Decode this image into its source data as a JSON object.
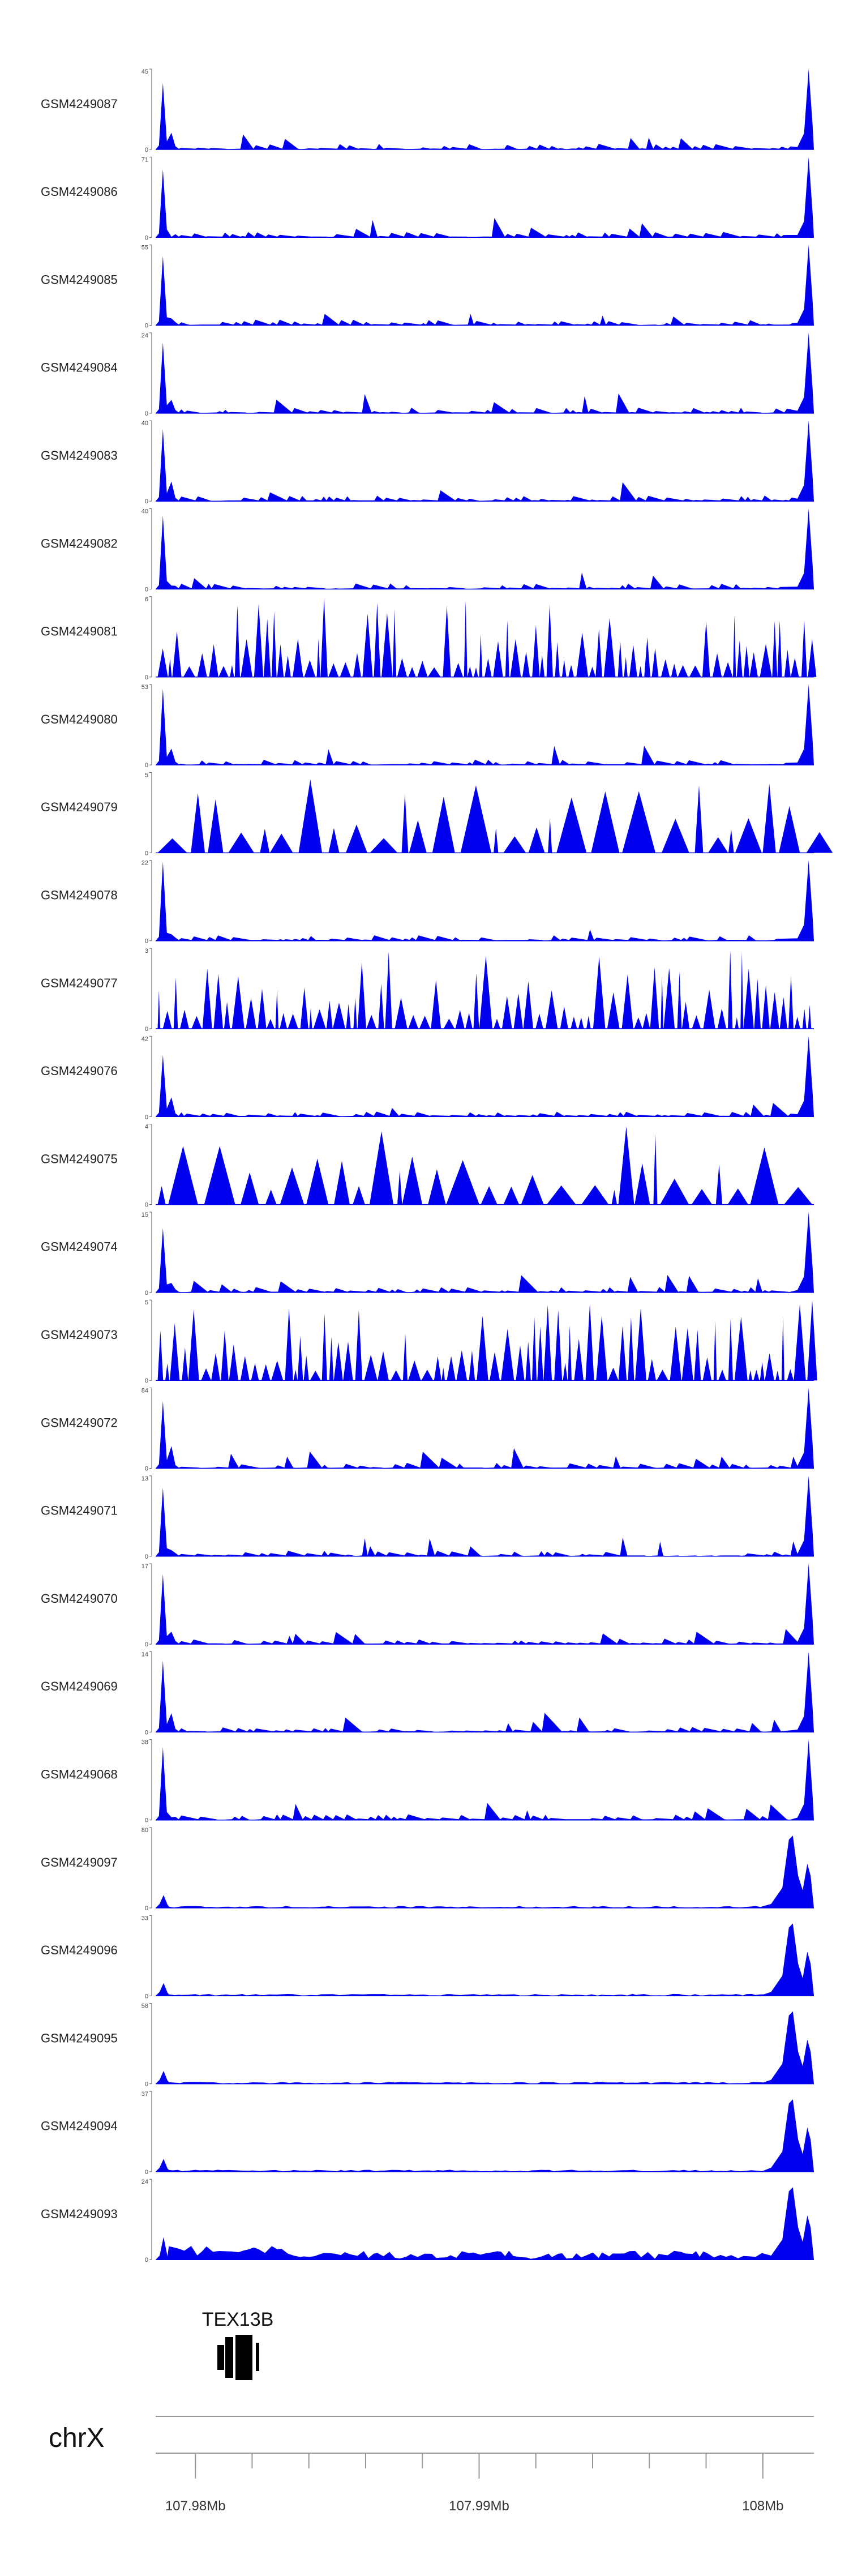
{
  "colors": {
    "signal": "#0000ee",
    "axis": "#999999",
    "text": "#222222",
    "gene": "#000000"
  },
  "chart_data": {
    "type": "area",
    "tracks": [
      {
        "name": "GSM4249087",
        "ymin": "0",
        "ymax": "45",
        "profile": "spikes"
      },
      {
        "name": "GSM4249086",
        "ymin": "0",
        "ymax": "71",
        "profile": "spikes"
      },
      {
        "name": "GSM4249085",
        "ymin": "0",
        "ymax": "55",
        "profile": "spikes"
      },
      {
        "name": "GSM4249084",
        "ymin": "0",
        "ymax": "24",
        "profile": "spikes"
      },
      {
        "name": "GSM4249083",
        "ymin": "0",
        "ymax": "40",
        "profile": "spikes"
      },
      {
        "name": "GSM4249082",
        "ymin": "0",
        "ymax": "40",
        "profile": "spikes"
      },
      {
        "name": "GSM4249081",
        "ymin": "0",
        "ymax": "6",
        "profile": "dense"
      },
      {
        "name": "GSM4249080",
        "ymin": "0",
        "ymax": "53",
        "profile": "spikes"
      },
      {
        "name": "GSM4249079",
        "ymin": "0",
        "ymax": "5",
        "profile": "sparse"
      },
      {
        "name": "GSM4249078",
        "ymin": "0",
        "ymax": "22",
        "profile": "spikes"
      },
      {
        "name": "GSM4249077",
        "ymin": "0",
        "ymax": "3",
        "profile": "dense"
      },
      {
        "name": "GSM4249076",
        "ymin": "0",
        "ymax": "42",
        "profile": "spikes"
      },
      {
        "name": "GSM4249075",
        "ymin": "0",
        "ymax": "4",
        "profile": "sparse"
      },
      {
        "name": "GSM4249074",
        "ymin": "0",
        "ymax": "15",
        "profile": "spikes"
      },
      {
        "name": "GSM4249073",
        "ymin": "0",
        "ymax": "5",
        "profile": "dense"
      },
      {
        "name": "GSM4249072",
        "ymin": "0",
        "ymax": "84",
        "profile": "spikes"
      },
      {
        "name": "GSM4249071",
        "ymin": "0",
        "ymax": "13",
        "profile": "spikes"
      },
      {
        "name": "GSM4249070",
        "ymin": "0",
        "ymax": "17",
        "profile": "spikes"
      },
      {
        "name": "GSM4249069",
        "ymin": "0",
        "ymax": "14",
        "profile": "spikes"
      },
      {
        "name": "GSM4249068",
        "ymin": "0",
        "ymax": "38",
        "profile": "spikes"
      },
      {
        "name": "GSM4249097",
        "ymin": "0",
        "ymax": "80",
        "profile": "rightpeak"
      },
      {
        "name": "GSM4249096",
        "ymin": "0",
        "ymax": "33",
        "profile": "rightpeak"
      },
      {
        "name": "GSM4249095",
        "ymin": "0",
        "ymax": "58",
        "profile": "rightpeak"
      },
      {
        "name": "GSM4249094",
        "ymin": "0",
        "ymax": "37",
        "profile": "rightpeak"
      },
      {
        "name": "GSM4249093",
        "ymin": "0",
        "ymax": "24",
        "profile": "rightpeak_noisy"
      }
    ],
    "gene": {
      "name": "TEX13B"
    },
    "chromosome": "chrX",
    "x_axis": {
      "range_mb": [
        107.9786,
        108.0018
      ],
      "labels": [
        {
          "text": "107.98Mb",
          "value": 107.98
        },
        {
          "text": "107.99Mb",
          "value": 107.99
        },
        {
          "text": "108Mb",
          "value": 108.0
        }
      ],
      "minor_tick_step_mb": 0.002
    }
  }
}
